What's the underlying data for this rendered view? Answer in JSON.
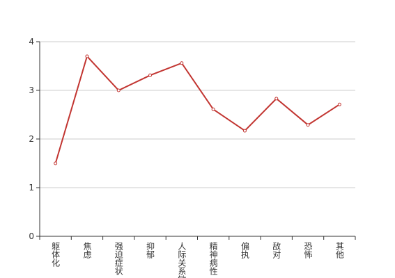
{
  "chart_data": {
    "type": "line",
    "categories": [
      "躯体化",
      "焦虑",
      "强迫症状",
      "抑郁",
      "人际关系敏感",
      "精神病性",
      "偏执",
      "敌对",
      "恐怖",
      "其他"
    ],
    "series": [
      {
        "color": "#c23531",
        "values": [
          1.5,
          3.7,
          3.0,
          3.31,
          3.56,
          2.61,
          2.17,
          2.83,
          2.29,
          2.71
        ]
      }
    ],
    "ylim": [
      0,
      4
    ],
    "yticks": [
      0,
      1,
      2,
      3,
      4
    ],
    "grid": true
  }
}
